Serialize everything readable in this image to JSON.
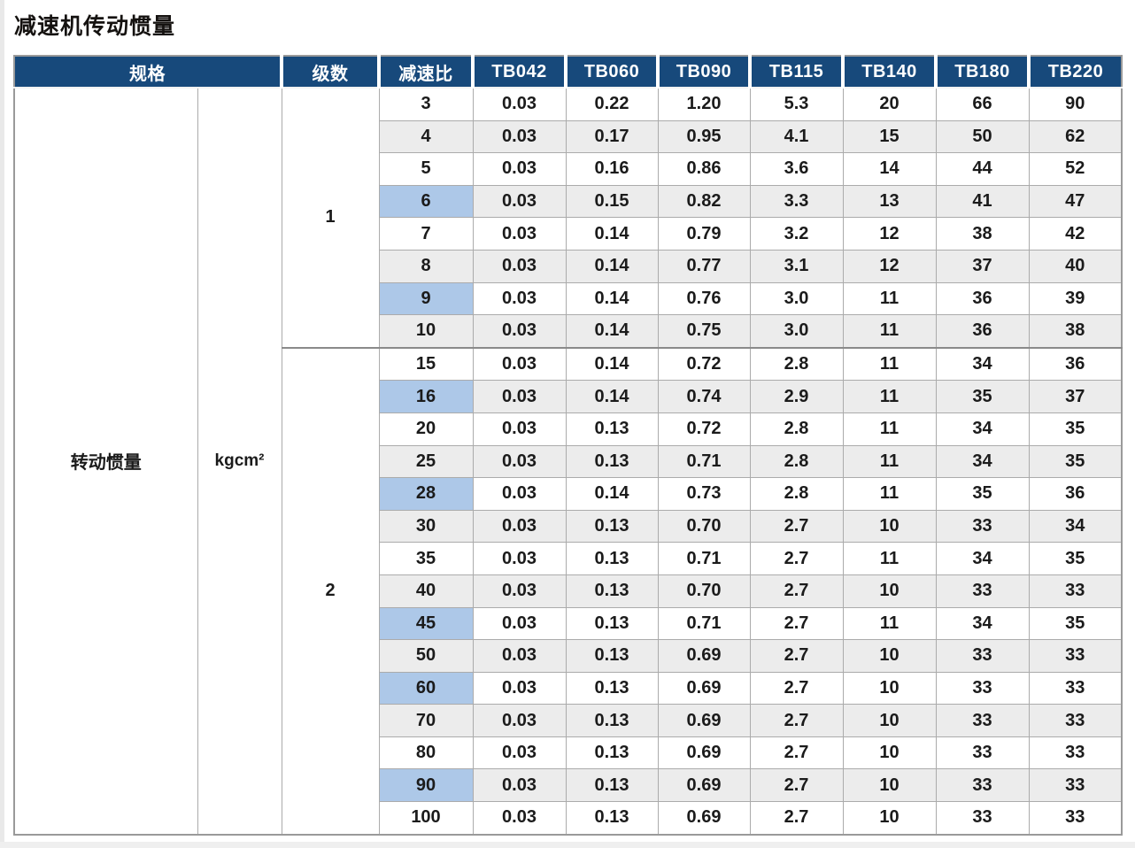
{
  "title": "减速机传动惯量",
  "colors": {
    "header_bg": "#17497b",
    "header_text": "#ffffff",
    "highlight_cell": "#adc8e8",
    "stripe_row": "#ececec",
    "body_text": "#1b1b1b",
    "grid_line": "#ababab"
  },
  "table": {
    "header": {
      "spec": "规格",
      "stages": "级数",
      "ratio": "减速比",
      "models": [
        "TB042",
        "TB060",
        "TB090",
        "TB115",
        "TB140",
        "TB180",
        "TB220"
      ]
    },
    "spec_label": "转动惯量",
    "unit": "kgcm²",
    "groups": [
      {
        "stages": "1",
        "rows": [
          {
            "ratio": "3",
            "highlight": false,
            "values": [
              "0.03",
              "0.22",
              "1.20",
              "5.3",
              "20",
              "66",
              "90"
            ]
          },
          {
            "ratio": "4",
            "highlight": false,
            "values": [
              "0.03",
              "0.17",
              "0.95",
              "4.1",
              "15",
              "50",
              "62"
            ]
          },
          {
            "ratio": "5",
            "highlight": false,
            "values": [
              "0.03",
              "0.16",
              "0.86",
              "3.6",
              "14",
              "44",
              "52"
            ]
          },
          {
            "ratio": "6",
            "highlight": true,
            "values": [
              "0.03",
              "0.15",
              "0.82",
              "3.3",
              "13",
              "41",
              "47"
            ]
          },
          {
            "ratio": "7",
            "highlight": false,
            "values": [
              "0.03",
              "0.14",
              "0.79",
              "3.2",
              "12",
              "38",
              "42"
            ]
          },
          {
            "ratio": "8",
            "highlight": false,
            "values": [
              "0.03",
              "0.14",
              "0.77",
              "3.1",
              "12",
              "37",
              "40"
            ]
          },
          {
            "ratio": "9",
            "highlight": true,
            "values": [
              "0.03",
              "0.14",
              "0.76",
              "3.0",
              "11",
              "36",
              "39"
            ]
          },
          {
            "ratio": "10",
            "highlight": false,
            "values": [
              "0.03",
              "0.14",
              "0.75",
              "3.0",
              "11",
              "36",
              "38"
            ]
          }
        ]
      },
      {
        "stages": "2",
        "rows": [
          {
            "ratio": "15",
            "highlight": false,
            "values": [
              "0.03",
              "0.14",
              "0.72",
              "2.8",
              "11",
              "34",
              "36"
            ]
          },
          {
            "ratio": "16",
            "highlight": true,
            "values": [
              "0.03",
              "0.14",
              "0.74",
              "2.9",
              "11",
              "35",
              "37"
            ]
          },
          {
            "ratio": "20",
            "highlight": false,
            "values": [
              "0.03",
              "0.13",
              "0.72",
              "2.8",
              "11",
              "34",
              "35"
            ]
          },
          {
            "ratio": "25",
            "highlight": false,
            "values": [
              "0.03",
              "0.13",
              "0.71",
              "2.8",
              "11",
              "34",
              "35"
            ]
          },
          {
            "ratio": "28",
            "highlight": true,
            "values": [
              "0.03",
              "0.14",
              "0.73",
              "2.8",
              "11",
              "35",
              "36"
            ]
          },
          {
            "ratio": "30",
            "highlight": false,
            "values": [
              "0.03",
              "0.13",
              "0.70",
              "2.7",
              "10",
              "33",
              "34"
            ]
          },
          {
            "ratio": "35",
            "highlight": false,
            "values": [
              "0.03",
              "0.13",
              "0.71",
              "2.7",
              "11",
              "34",
              "35"
            ]
          },
          {
            "ratio": "40",
            "highlight": false,
            "values": [
              "0.03",
              "0.13",
              "0.70",
              "2.7",
              "10",
              "33",
              "33"
            ]
          },
          {
            "ratio": "45",
            "highlight": true,
            "values": [
              "0.03",
              "0.13",
              "0.71",
              "2.7",
              "11",
              "34",
              "35"
            ]
          },
          {
            "ratio": "50",
            "highlight": false,
            "values": [
              "0.03",
              "0.13",
              "0.69",
              "2.7",
              "10",
              "33",
              "33"
            ]
          },
          {
            "ratio": "60",
            "highlight": true,
            "values": [
              "0.03",
              "0.13",
              "0.69",
              "2.7",
              "10",
              "33",
              "33"
            ]
          },
          {
            "ratio": "70",
            "highlight": false,
            "values": [
              "0.03",
              "0.13",
              "0.69",
              "2.7",
              "10",
              "33",
              "33"
            ]
          },
          {
            "ratio": "80",
            "highlight": false,
            "values": [
              "0.03",
              "0.13",
              "0.69",
              "2.7",
              "10",
              "33",
              "33"
            ]
          },
          {
            "ratio": "90",
            "highlight": true,
            "values": [
              "0.03",
              "0.13",
              "0.69",
              "2.7",
              "10",
              "33",
              "33"
            ]
          },
          {
            "ratio": "100",
            "highlight": false,
            "values": [
              "0.03",
              "0.13",
              "0.69",
              "2.7",
              "10",
              "33",
              "33"
            ]
          }
        ]
      }
    ]
  }
}
